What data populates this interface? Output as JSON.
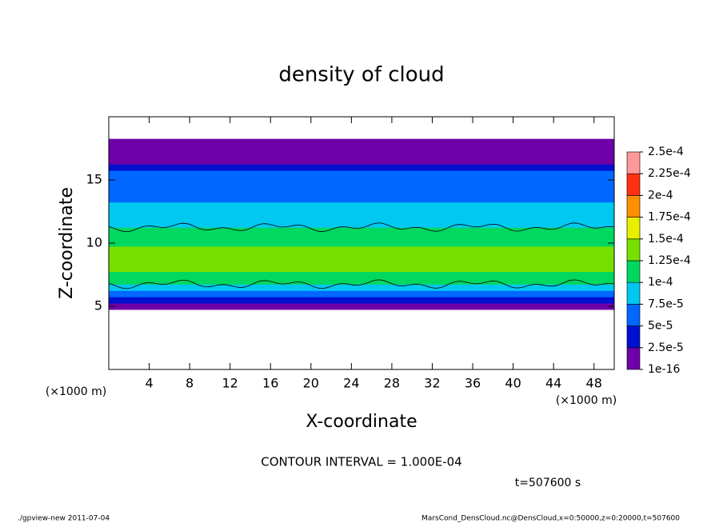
{
  "chart_data": {
    "type": "contour",
    "title": "density of cloud",
    "x_label": "X-coordinate",
    "y_label": "Z-coordinate",
    "x_unit": "(×1000 m)",
    "y_unit": "(×1000 m)",
    "xlim": [
      0,
      50
    ],
    "xticks": [
      4,
      8,
      12,
      16,
      20,
      24,
      28,
      32,
      36,
      40,
      44,
      48
    ],
    "ylim": [
      0,
      20
    ],
    "yticks": [
      5,
      10,
      15
    ],
    "colorbar": {
      "levels": [
        {
          "value": 1e-16,
          "label": "1e-16"
        },
        {
          "value": 2.5e-05,
          "label": "2.5e-5"
        },
        {
          "value": 5e-05,
          "label": "5e-5"
        },
        {
          "value": 7.5e-05,
          "label": "7.5e-5"
        },
        {
          "value": 0.0001,
          "label": "1e-4"
        },
        {
          "value": 0.000125,
          "label": "1.25e-4"
        },
        {
          "value": 0.00015,
          "label": "1.5e-4"
        },
        {
          "value": 0.000175,
          "label": "1.75e-4"
        },
        {
          "value": 0.0002,
          "label": "2e-4"
        },
        {
          "value": 0.000225,
          "label": "2.25e-4"
        },
        {
          "value": 0.00025,
          "label": "2.5e-4"
        }
      ],
      "colors": [
        "#7000a8",
        "#0010d0",
        "#0068ff",
        "#00c8f0",
        "#00d860",
        "#78e000",
        "#e8f000",
        "#ff9000",
        "#ff3010",
        "#ff9898"
      ]
    },
    "profile": {
      "z": [
        5,
        5.5,
        6,
        6.5,
        7,
        7.5,
        8,
        8.5,
        9,
        9.5,
        10,
        10.5,
        11,
        11.5,
        12,
        12.5,
        13,
        13.5,
        14,
        14.5,
        15,
        15.5,
        16,
        16.5,
        17,
        17.5,
        18
      ],
      "values": [
        1e-05,
        3e-05,
        6e-05,
        8e-05,
        0.000105,
        0.00012,
        0.00013,
        0.00014,
        0.000135,
        0.00013,
        0.00012,
        0.00011,
        0.000102,
        9e-05,
        8.5e-05,
        8e-05,
        7.5e-05,
        7e-05,
        6.5e-05,
        6e-05,
        5.5e-05,
        5e-05,
        3e-05,
        1e-05,
        1e-05,
        1e-05,
        1e-05
      ]
    },
    "contour_interval": "CONTOUR INTERVAL = 1.000E-04",
    "time_label": "t=507600 s",
    "footer_left": "./gpview-new  2011-07-04",
    "footer_right": "MarsCond_DensCloud.nc@DensCloud,x=0:50000,z=0:20000,t=507600"
  }
}
